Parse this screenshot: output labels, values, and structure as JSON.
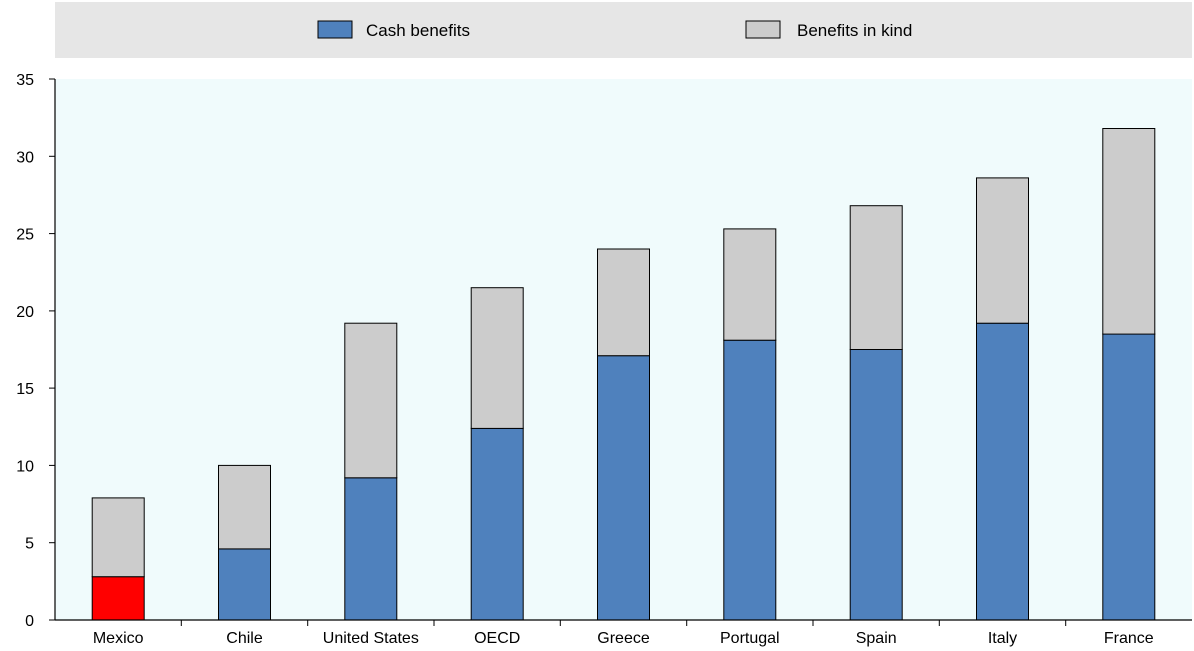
{
  "chart_data": {
    "type": "bar",
    "stacked": true,
    "categories": [
      "Mexico",
      "Chile",
      "United States",
      "OECD",
      "Greece",
      "Portugal",
      "Spain",
      "Italy",
      "France"
    ],
    "series": [
      {
        "name": "Cash benefits",
        "color": "#4f81bd",
        "values": [
          2.8,
          4.6,
          9.2,
          12.4,
          17.1,
          18.1,
          17.5,
          19.2,
          18.5
        ]
      },
      {
        "name": "Benefits in kind",
        "color": "#cccccc",
        "values": [
          5.1,
          5.4,
          10.0,
          9.1,
          6.9,
          7.2,
          9.3,
          9.4,
          13.3
        ]
      }
    ],
    "highlight": {
      "category": "Mexico",
      "series": "Cash benefits",
      "color": "#ff0000"
    },
    "ylim": [
      0,
      35
    ],
    "yticks": [
      0,
      5,
      10,
      15,
      20,
      25,
      30,
      35
    ],
    "grid": false,
    "legend_position": "top",
    "plot_background": "#f0fbfc",
    "legend_background": "#e6e6e6"
  }
}
